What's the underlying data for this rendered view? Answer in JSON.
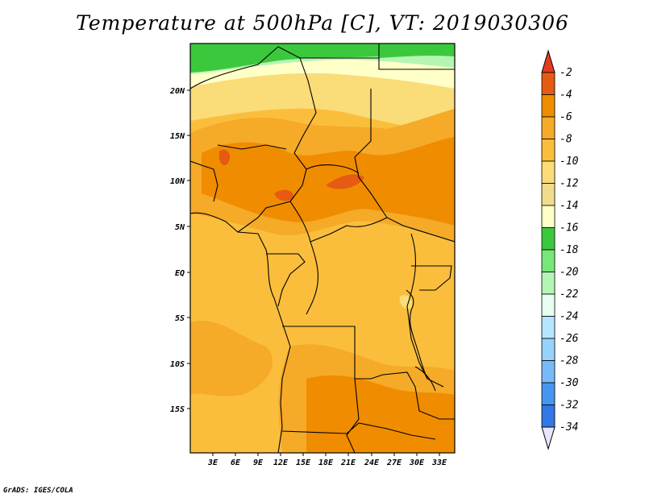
{
  "title": "Temperature at 500hPa [C], VT: 2019030306",
  "credit": "GrADS: IGES/COLA",
  "map": {
    "lat_ticks": [
      "20N",
      "15N",
      "10N",
      "5N",
      "EQ",
      "5S",
      "10S",
      "15S"
    ],
    "lon_ticks": [
      "3E",
      "6E",
      "9E",
      "12E",
      "15E",
      "18E",
      "21E",
      "24E",
      "27E",
      "30E",
      "33E"
    ]
  },
  "colorbar": {
    "labels": [
      "-2",
      "-4",
      "-6",
      "-8",
      "-10",
      "-12",
      "-14",
      "-16",
      "-18",
      "-20",
      "-22",
      "-24",
      "-26",
      "-28",
      "-30",
      "-32",
      "-34"
    ],
    "colors": [
      "#f0dc8c",
      "#ffffc8",
      "#3cc83c",
      "#78e678",
      "#b4f5b4",
      "#e6fff0",
      "#b4e6ff",
      "#96d2fa",
      "#78b9fa",
      "#4696f0",
      "#3278e6",
      "#1e5adc",
      "#1446c8",
      "#0a1e78"
    ],
    "warm_colors": [
      "#e65a14",
      "#f08c00",
      "#f5aa28",
      "#fabe3c",
      "#fadc78"
    ],
    "top_color": "#e63c1e",
    "bottom_color": "#e6e6ff"
  },
  "icons": {
    "logo": "grads-credit-text"
  }
}
